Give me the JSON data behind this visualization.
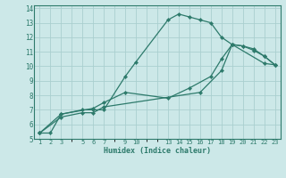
{
  "xlabel": "Humidex (Indice chaleur)",
  "bg_color": "#cce8e8",
  "grid_color": "#aacfcf",
  "line_color": "#2d7a6b",
  "xlim": [
    0.5,
    23.5
  ],
  "ylim": [
    5,
    14.2
  ],
  "xtick_positions": [
    1,
    2,
    3,
    5,
    6,
    7,
    9,
    10,
    13,
    14,
    15,
    16,
    17,
    18,
    19,
    20,
    21,
    22,
    23
  ],
  "xtick_labels": [
    "1",
    "2",
    "3",
    "5",
    "6",
    "7",
    "9",
    "10",
    "13",
    "14",
    "15",
    "16",
    "17",
    "18",
    "19",
    "20",
    "21",
    "22",
    "23"
  ],
  "ytick_positions": [
    5,
    6,
    7,
    8,
    9,
    10,
    11,
    12,
    13,
    14
  ],
  "ytick_labels": [
    "5",
    "6",
    "7",
    "8",
    "9",
    "10",
    "11",
    "12",
    "13",
    "14"
  ],
  "series": [
    {
      "x": [
        1,
        2,
        3,
        5,
        6,
        7,
        9,
        10,
        13,
        14,
        15,
        16,
        17,
        18,
        19,
        20,
        21,
        22,
        23
      ],
      "y": [
        5.4,
        5.4,
        6.7,
        7.0,
        7.0,
        7.0,
        9.3,
        10.3,
        13.2,
        13.6,
        13.4,
        13.2,
        13.0,
        12.0,
        11.5,
        11.4,
        11.1,
        10.7,
        10.1
      ]
    },
    {
      "x": [
        1,
        3,
        6,
        7,
        9,
        13,
        15,
        17,
        18,
        19,
        22,
        23
      ],
      "y": [
        5.4,
        6.7,
        7.1,
        7.5,
        8.2,
        7.8,
        8.5,
        9.3,
        10.5,
        11.5,
        10.2,
        10.1
      ]
    },
    {
      "x": [
        1,
        3,
        5,
        6,
        7,
        16,
        18,
        19,
        20,
        21,
        22,
        23
      ],
      "y": [
        5.4,
        6.5,
        6.8,
        6.8,
        7.2,
        8.2,
        9.7,
        11.5,
        11.4,
        11.2,
        10.7,
        10.1
      ]
    }
  ]
}
